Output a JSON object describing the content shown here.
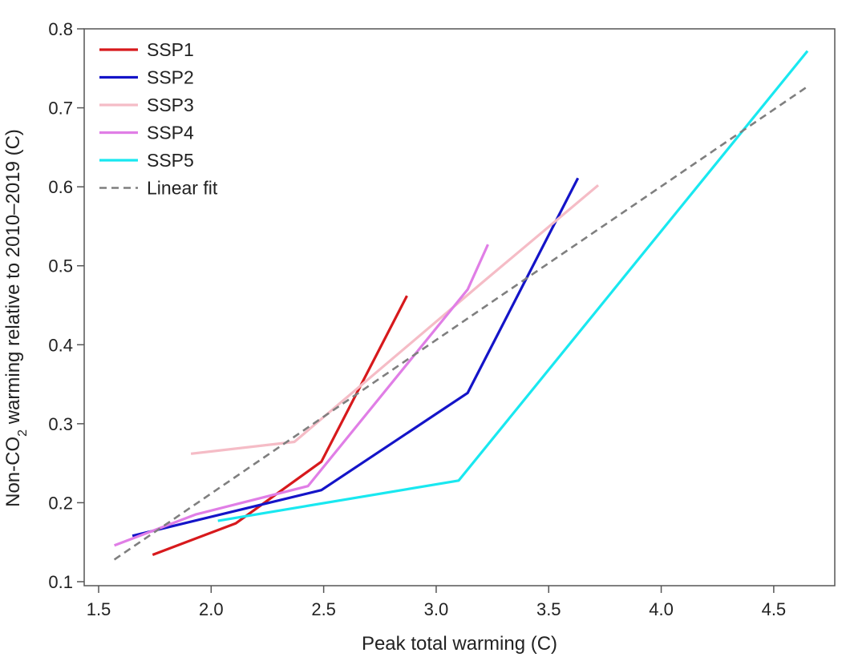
{
  "chart_data": {
    "type": "line",
    "title": "",
    "xlabel": "Peak total warming (C)",
    "ylabel": {
      "prefix": "Non-CO",
      "subscript": "2",
      "suffix": " warming relative to 2010–2019 (C)"
    },
    "xlim": [
      1.5,
      4.7
    ],
    "ylim": [
      0.1,
      0.8
    ],
    "xticks": [
      {
        "value": 1.5,
        "label": "1.5"
      },
      {
        "value": 2.0,
        "label": "2.0"
      },
      {
        "value": 2.5,
        "label": "2.5"
      },
      {
        "value": 3.0,
        "label": "3.0"
      },
      {
        "value": 3.5,
        "label": "3.5"
      },
      {
        "value": 4.0,
        "label": "4.0"
      },
      {
        "value": 4.5,
        "label": "4.5"
      }
    ],
    "yticks": [
      {
        "value": 0.1,
        "label": "0.1"
      },
      {
        "value": 0.2,
        "label": "0.2"
      },
      {
        "value": 0.3,
        "label": "0.3"
      },
      {
        "value": 0.4,
        "label": "0.4"
      },
      {
        "value": 0.5,
        "label": "0.5"
      },
      {
        "value": 0.6,
        "label": "0.6"
      },
      {
        "value": 0.7,
        "label": "0.7"
      },
      {
        "value": 0.8,
        "label": "0.8"
      }
    ],
    "grid": false,
    "legend_position": "top-left",
    "series": [
      {
        "name": "SSP1",
        "color": "#d7191c",
        "dash": false,
        "x": [
          1.74,
          2.11,
          2.49,
          2.87
        ],
        "y": [
          0.134,
          0.174,
          0.252,
          0.462
        ]
      },
      {
        "name": "SSP2",
        "color": "#1414c8",
        "dash": false,
        "x": [
          1.65,
          2.49,
          3.14,
          3.63
        ],
        "y": [
          0.158,
          0.216,
          0.339,
          0.611
        ]
      },
      {
        "name": "SSP3",
        "color": "#f5bcc6",
        "dash": false,
        "x": [
          1.91,
          2.37,
          3.21,
          3.72
        ],
        "y": [
          0.262,
          0.277,
          0.48,
          0.602
        ]
      },
      {
        "name": "SSP4",
        "color": "#e07ee6",
        "dash": false,
        "x": [
          1.57,
          1.93,
          2.43,
          3.14,
          3.23
        ],
        "y": [
          0.146,
          0.185,
          0.221,
          0.47,
          0.527
        ]
      },
      {
        "name": "SSP5",
        "color": "#19e8f0",
        "dash": false,
        "x": [
          2.03,
          3.1,
          4.65
        ],
        "y": [
          0.177,
          0.228,
          0.772
        ]
      },
      {
        "name": "Linear fit",
        "color": "#7f7f7f",
        "dash": true,
        "x": [
          1.57,
          4.65
        ],
        "y": [
          0.128,
          0.727
        ]
      }
    ]
  }
}
